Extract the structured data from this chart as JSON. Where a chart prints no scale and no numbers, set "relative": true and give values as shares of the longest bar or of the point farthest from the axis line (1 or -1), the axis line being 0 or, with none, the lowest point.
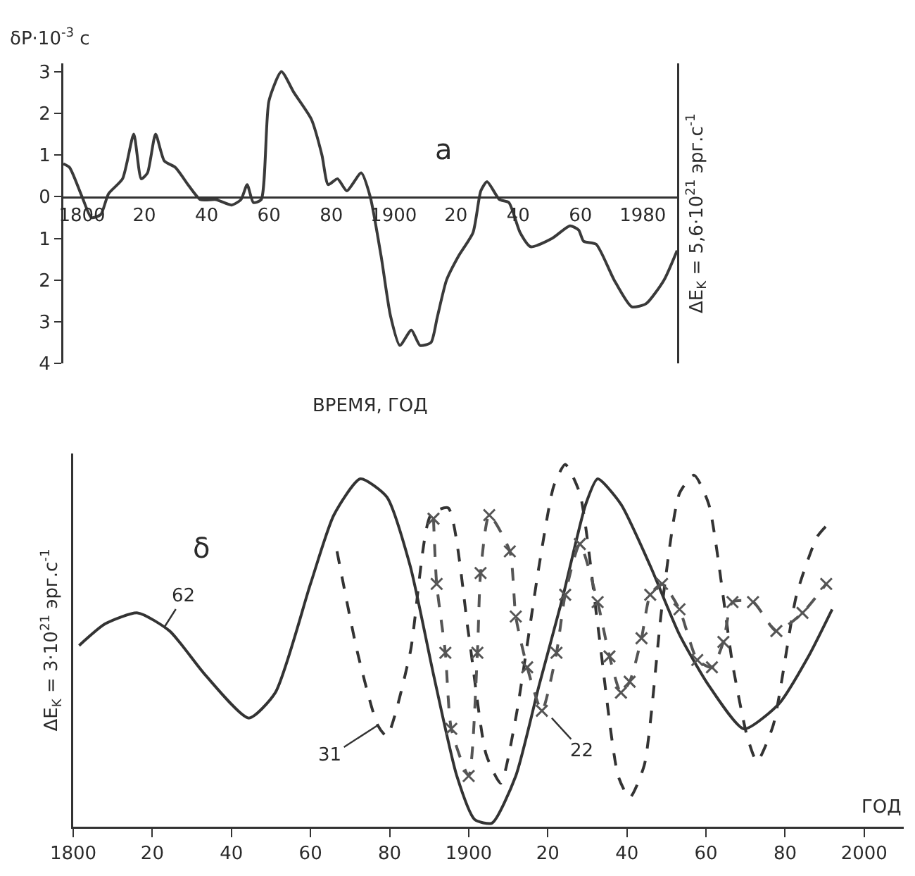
{
  "chart_data": [
    {
      "type": "line",
      "xlabel": "ВРЕМЯ, ГОД",
      "ylabel": "δP·10$^{-3}$ c",
      "y2label": "ΔE$_{K}$ = 5,6·10$^{21}$ эрг.с$^{-1}$",
      "annotations": [
        "a"
      ],
      "xlim": [
        1794,
        1991
      ],
      "xticks": [
        1800,
        {
          "value": 1820,
          "label": "20"
        },
        {
          "value": 1840,
          "label": "40"
        },
        {
          "value": 1860,
          "label": "60"
        },
        {
          "value": 1880,
          "label": "80"
        },
        1900,
        {
          "value": 1920,
          "label": "20"
        },
        {
          "value": 1940,
          "label": "40"
        },
        {
          "value": 1960,
          "label": "60"
        },
        1980
      ],
      "ylim": [
        -4,
        3.2
      ],
      "yticks": [
        {
          "value": -4,
          "label": "4"
        },
        {
          "value": -3,
          "label": "3"
        },
        {
          "value": -2,
          "label": "2"
        },
        {
          "value": -1,
          "label": "1"
        },
        0,
        1,
        2,
        3
      ],
      "series": [
        {
          "color": "#3a3a3a",
          "x": [
            1794,
            1796,
            1800,
            1803,
            1806,
            1808.5,
            1813,
            1816.6,
            1819,
            1821,
            1823.6,
            1826.4,
            1830,
            1834,
            1838,
            1843,
            1848,
            1851,
            1853,
            1855,
            1857.5,
            1860,
            1864,
            1868,
            1873.6,
            1877,
            1879,
            1882,
            1885,
            1889.6,
            1892.5,
            1896,
            1899,
            1902,
            1905.7,
            1908.5,
            1912,
            1914,
            1917,
            1920.8,
            1925.5,
            1928,
            1930,
            1934,
            1937,
            1940.6,
            1944,
            1950.9,
            1956.6,
            1959.4,
            1961,
            1965,
            1970.8,
            1976.4,
            1981,
            1986.8,
            1991
          ],
          "values": [
            0.79,
            0.7,
            0,
            -0.5,
            -0.43,
            0.07,
            0.43,
            1.5,
            0.43,
            0.57,
            1.5,
            0.86,
            0.7,
            0.29,
            -0.07,
            -0.07,
            -0.2,
            -0.07,
            0.29,
            -0.14,
            -0.07,
            2.3,
            3.0,
            2.5,
            1.86,
            1.0,
            0.29,
            0.43,
            0.14,
            0.57,
            0,
            -1.43,
            -2.86,
            -3.57,
            -3.2,
            -3.57,
            -3.5,
            -2.9,
            -2.0,
            -1.43,
            -0.86,
            0.14,
            0.36,
            -0.07,
            -0.14,
            -0.86,
            -1.2,
            -1.0,
            -0.7,
            -0.8,
            -1.07,
            -1.14,
            -2.0,
            -2.64,
            -2.57,
            -2.0,
            -1.29
          ]
        }
      ]
    },
    {
      "type": "line",
      "relative": true,
      "xlabel": "ГОД",
      "ylabel": "ΔE$_{K}$ = 3·10$^{21}$ эрг.с$^{-1}$",
      "annotations": [
        "δ",
        {
          "text": "62",
          "x": 1823,
          "y": 0.55
        },
        {
          "text": "31",
          "x": 1877,
          "y": 0.28
        },
        {
          "text": "22",
          "x": 1921,
          "y": 0.3
        }
      ],
      "xlim": [
        1800,
        2010
      ],
      "xticks": [
        1800,
        {
          "value": 1820,
          "label": "20"
        },
        {
          "value": 1840,
          "label": "40"
        },
        {
          "value": 1860,
          "label": "60"
        },
        {
          "value": 1880,
          "label": "80"
        },
        1900,
        {
          "value": 1920,
          "label": "20"
        },
        {
          "value": 1940,
          "label": "40"
        },
        {
          "value": 1960,
          "label": "60"
        },
        {
          "value": 1980,
          "label": "80"
        },
        2000
      ],
      "series": [
        {
          "color": "#333333",
          "line_style": "solid",
          "x": [
            1801.5,
            1808.1,
            1816.3,
            1824.4,
            1833.3,
            1844.4,
            1851.1,
            1860,
            1865.9,
            1872.6,
            1879.3,
            1885.2,
            1891.1,
            1897,
            1901.5,
            1905.9,
            1911.9,
            1917.8,
            1923.7,
            1929.6,
            1932.6,
            1938.5,
            1945.9,
            1953.3,
            1960.7,
            1969.6,
            1978.5,
            1985.9,
            1991.9
          ],
          "values": [
            0.5,
            0.56,
            0.59,
            0.54,
            0.42,
            0.3,
            0.37,
            0.67,
            0.86,
            0.96,
            0.91,
            0.72,
            0.42,
            0.14,
            0.02,
            0.01,
            0.14,
            0.39,
            0.63,
            0.89,
            0.96,
            0.89,
            0.72,
            0.53,
            0.39,
            0.27,
            0.34,
            0.47,
            0.6
          ]
        },
        {
          "color": "#333333",
          "line_style": "dashed",
          "x": [
            1866.7,
            1871.9,
            1877,
            1879.3,
            1885.2,
            1890.4,
            1894.8,
            1900,
            1904.4,
            1908.1,
            1911.9,
            1917.8,
            1921.5,
            1924.4,
            1928.1,
            1932.6,
            1937.8,
            1940.7,
            1944.4,
            1948.9,
            1953.3,
            1957,
            1960.7,
            1966.7,
            1970.4,
            1972.9,
            1977,
            1982.9,
            1988.1,
            1990.4
          ],
          "values": [
            0.76,
            0.48,
            0.28,
            0.25,
            0.48,
            0.86,
            0.88,
            0.53,
            0.2,
            0.12,
            0.3,
            0.72,
            0.94,
            1.0,
            0.92,
            0.56,
            0.14,
            0.08,
            0.17,
            0.61,
            0.92,
            0.97,
            0.89,
            0.45,
            0.25,
            0.18,
            0.28,
            0.64,
            0.8,
            0.83
          ]
        },
        {
          "color": "#555555",
          "line_style": "dashed",
          "marker": "cross",
          "x": [
            1891.1,
            1891.9,
            1894.1,
            1895.6,
            1900,
            1902.2,
            1903,
            1905.2,
            1910.4,
            1911.9,
            1914.8,
            1918.5,
            1922.2,
            1924.4,
            1928.1,
            1932.6,
            1935.6,
            1938.5,
            1940.7,
            1943.7,
            1945.9,
            1948.9,
            1953.3,
            1957.8,
            1961.5,
            1964.4,
            1966.7,
            1971.9,
            1977.8,
            1984.4,
            1990.4
          ],
          "values": [
            0.85,
            0.67,
            0.48,
            0.27,
            0.14,
            0.48,
            0.7,
            0.86,
            0.76,
            0.58,
            0.44,
            0.32,
            0.48,
            0.64,
            0.78,
            0.62,
            0.47,
            0.37,
            0.4,
            0.52,
            0.64,
            0.67,
            0.6,
            0.46,
            0.44,
            0.51,
            0.62,
            0.62,
            0.54,
            0.59,
            0.67
          ]
        }
      ]
    }
  ]
}
